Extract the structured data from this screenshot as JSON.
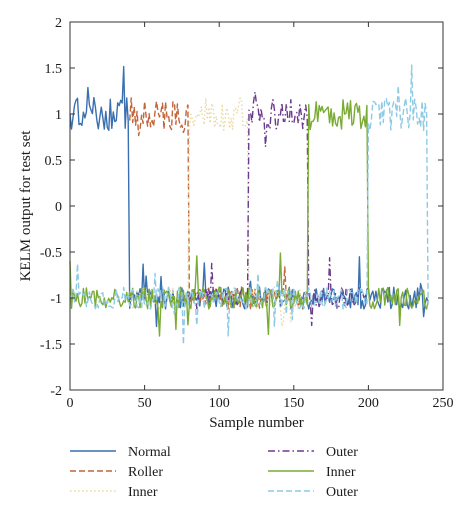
{
  "chart_data": {
    "type": "line",
    "title": "",
    "xlabel": "Sample number",
    "ylabel": "KELM output for test set",
    "xlim": [
      0,
      250
    ],
    "ylim": [
      -2,
      2
    ],
    "xticks": [
      0,
      50,
      100,
      150,
      200,
      250
    ],
    "yticks": [
      -2,
      -1.5,
      -1,
      -0.5,
      0,
      0.5,
      1,
      1.5,
      2
    ],
    "xtick_labels": [
      "0",
      "50",
      "100",
      "150",
      "200",
      "250"
    ],
    "ytick_labels": [
      "-2",
      "-1.5",
      "-1",
      "-0.5",
      "0",
      "0.5",
      "1",
      "1.5",
      "2"
    ],
    "grid": false,
    "legend_position": "bottom",
    "series": [
      {
        "name": "Normal",
        "color": "#3a6fb0",
        "dash": "solid",
        "high": [
          0,
          40
        ],
        "start": 0,
        "end": 240
      },
      {
        "name": "Roller",
        "color": "#c1653a",
        "dash": "dashed",
        "high": [
          40,
          80
        ],
        "start": 40,
        "end": 160
      },
      {
        "name": "Inner",
        "color": "#e8d9a0",
        "dash": "dotted",
        "high": [
          80,
          120
        ],
        "start": 40,
        "end": 160
      },
      {
        "name": "Outer",
        "color": "#6b3a8c",
        "dash": "dashdot",
        "high": [
          120,
          160
        ],
        "start": 80,
        "end": 200
      },
      {
        "name": "Inner",
        "color": "#7aab35",
        "dash": "solid",
        "high": [
          160,
          200
        ],
        "start": 0,
        "end": 240
      },
      {
        "name": "Outer",
        "color": "#8ecae6",
        "dash": "dashed",
        "high": [
          200,
          240
        ],
        "start": 0,
        "end": 240
      }
    ]
  }
}
